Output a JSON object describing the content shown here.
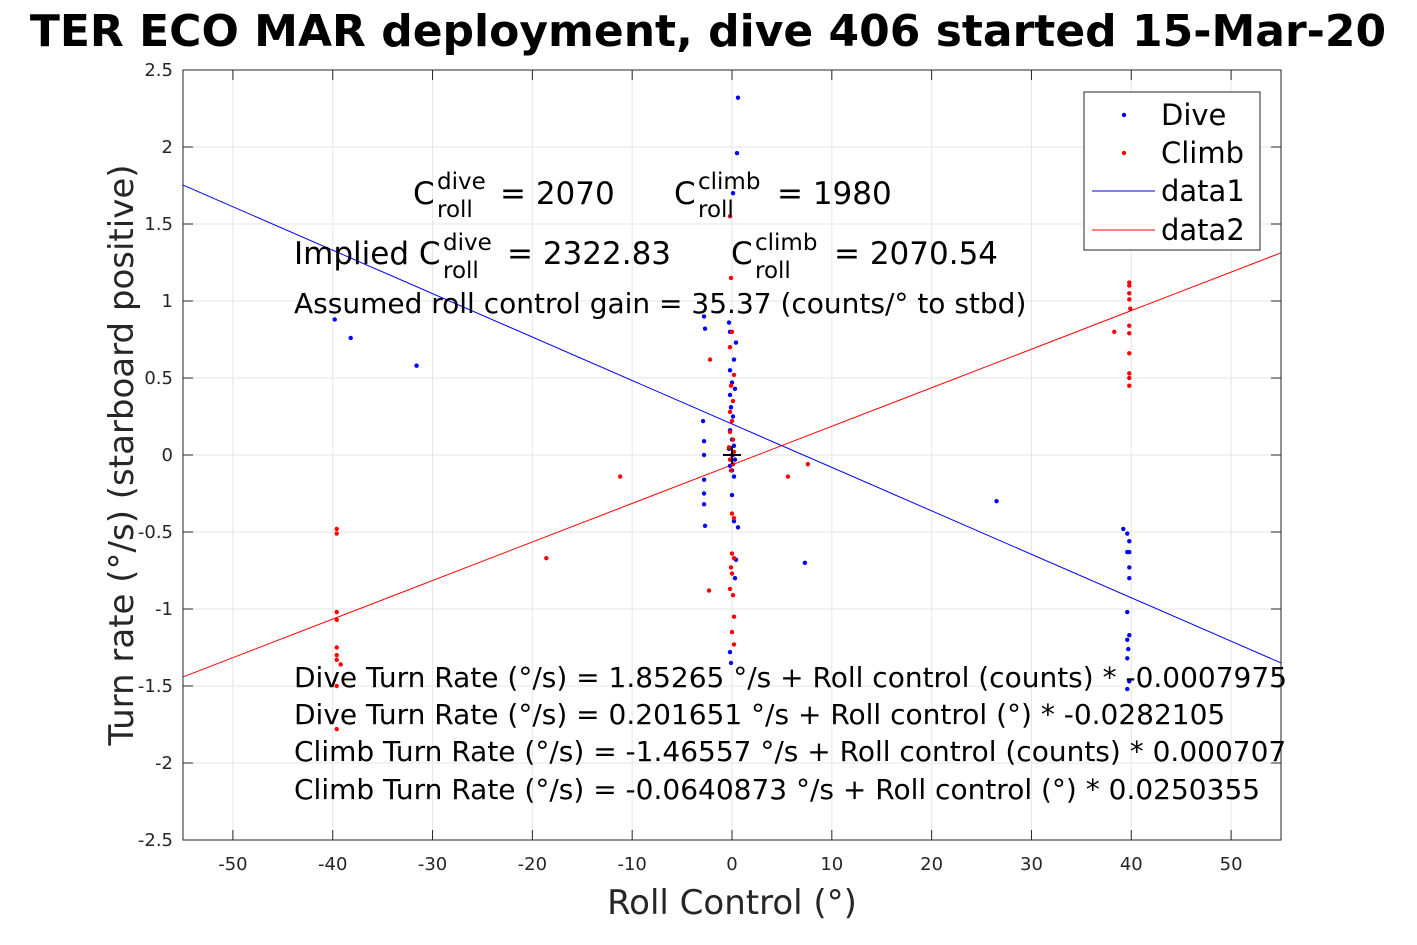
{
  "chart_data": {
    "type": "scatter",
    "title": "TER ECO MAR deployment, dive 406 started 15-Mar-20",
    "xlabel": "Roll Control (°)",
    "ylabel": "Turn rate (°/s) (starboard positive)",
    "xlim": [
      -55,
      55
    ],
    "ylim": [
      -2.5,
      2.5
    ],
    "xticks": [
      -50,
      -40,
      -30,
      -20,
      -10,
      0,
      10,
      20,
      30,
      40,
      50
    ],
    "yticks": [
      -2.5,
      -2,
      -1.5,
      -1,
      -0.5,
      0,
      0.5,
      1,
      1.5,
      2,
      2.5
    ],
    "grid": true,
    "legend_position": "top-right",
    "colors": {
      "dive": "#0000ff",
      "climb": "#ff0000",
      "marker": "#000000"
    },
    "series": [
      {
        "name": "Dive",
        "kind": "points",
        "color": "#0000ff",
        "points": [
          [
            -39.8,
            0.88
          ],
          [
            -38.2,
            0.76
          ],
          [
            -31.6,
            0.58
          ],
          [
            -2.8,
            0.9
          ],
          [
            -2.7,
            0.82
          ],
          [
            -2.9,
            0.22
          ],
          [
            -2.8,
            0.09
          ],
          [
            -2.8,
            0.0
          ],
          [
            -2.8,
            -0.16
          ],
          [
            -2.8,
            -0.25
          ],
          [
            -2.8,
            -0.32
          ],
          [
            -2.7,
            -0.46
          ],
          [
            0.6,
            2.32
          ],
          [
            0.5,
            1.96
          ],
          [
            0.1,
            1.7
          ],
          [
            -0.3,
            0.86
          ],
          [
            -0.2,
            0.8
          ],
          [
            0.4,
            0.73
          ],
          [
            0.2,
            0.62
          ],
          [
            -0.2,
            0.55
          ],
          [
            0.0,
            0.47
          ],
          [
            0.3,
            0.43
          ],
          [
            -0.2,
            0.39
          ],
          [
            -0.1,
            0.31
          ],
          [
            0.1,
            0.25
          ],
          [
            -0.2,
            0.16
          ],
          [
            0.0,
            0.1
          ],
          [
            0.2,
            0.06
          ],
          [
            -0.3,
            0.04
          ],
          [
            0.1,
            0.0
          ],
          [
            0.3,
            -0.03
          ],
          [
            -0.2,
            -0.07
          ],
          [
            0.0,
            -0.1
          ],
          [
            0.2,
            -0.14
          ],
          [
            0.0,
            -0.26
          ],
          [
            0.2,
            -0.43
          ],
          [
            0.6,
            -0.47
          ],
          [
            0.4,
            -0.68
          ],
          [
            0.3,
            -0.8
          ],
          [
            -0.2,
            -1.28
          ],
          [
            -0.1,
            -1.35
          ],
          [
            7.3,
            -0.7
          ],
          [
            26.5,
            -0.3
          ],
          [
            39.2,
            -0.48
          ],
          [
            39.6,
            -0.51
          ],
          [
            39.8,
            -0.56
          ],
          [
            39.8,
            -0.63
          ],
          [
            39.6,
            -0.63
          ],
          [
            39.8,
            -0.73
          ],
          [
            39.8,
            -0.8
          ],
          [
            39.6,
            -1.02
          ],
          [
            39.8,
            -1.17
          ],
          [
            39.6,
            -1.2
          ],
          [
            39.7,
            -1.26
          ],
          [
            39.6,
            -1.32
          ],
          [
            39.8,
            -1.47
          ],
          [
            39.6,
            -1.52
          ]
        ]
      },
      {
        "name": "Climb",
        "kind": "points",
        "color": "#ff0000",
        "points": [
          [
            -39.6,
            -0.48
          ],
          [
            -39.6,
            -0.51
          ],
          [
            -39.6,
            -1.02
          ],
          [
            -39.6,
            -1.07
          ],
          [
            -39.6,
            -1.25
          ],
          [
            -39.6,
            -1.3
          ],
          [
            -39.6,
            -1.33
          ],
          [
            -39.2,
            -1.36
          ],
          [
            -39.6,
            -1.5
          ],
          [
            -39.6,
            -1.78
          ],
          [
            -18.6,
            -0.67
          ],
          [
            -11.2,
            -0.14
          ],
          [
            -2.2,
            0.62
          ],
          [
            -2.3,
            -0.88
          ],
          [
            -0.2,
            1.55
          ],
          [
            -0.1,
            1.15
          ],
          [
            0.0,
            0.8
          ],
          [
            -0.2,
            0.7
          ],
          [
            0.2,
            0.52
          ],
          [
            -0.1,
            0.45
          ],
          [
            0.1,
            0.35
          ],
          [
            -0.2,
            0.28
          ],
          [
            0.0,
            0.22
          ],
          [
            -0.2,
            0.15
          ],
          [
            0.1,
            0.1
          ],
          [
            -0.3,
            0.05
          ],
          [
            0.2,
            0.02
          ],
          [
            0.0,
            0.0
          ],
          [
            -0.2,
            -0.03
          ],
          [
            0.1,
            -0.06
          ],
          [
            -0.1,
            -0.1
          ],
          [
            0.0,
            -0.38
          ],
          [
            0.2,
            -0.41
          ],
          [
            0.0,
            -0.64
          ],
          [
            0.2,
            -0.67
          ],
          [
            -0.1,
            -0.73
          ],
          [
            0.0,
            -0.77
          ],
          [
            -0.2,
            -0.87
          ],
          [
            0.1,
            -0.91
          ],
          [
            0.2,
            -1.05
          ],
          [
            0.0,
            -1.15
          ],
          [
            0.2,
            -1.23
          ],
          [
            5.6,
            -0.14
          ],
          [
            7.6,
            -0.06
          ],
          [
            38.3,
            0.8
          ],
          [
            39.8,
            1.12
          ],
          [
            39.8,
            1.1
          ],
          [
            39.8,
            1.05
          ],
          [
            39.8,
            1.01
          ],
          [
            39.9,
            0.95
          ],
          [
            39.8,
            0.84
          ],
          [
            39.8,
            0.79
          ],
          [
            39.8,
            0.66
          ],
          [
            39.8,
            0.53
          ],
          [
            39.8,
            0.5
          ],
          [
            39.8,
            0.45
          ]
        ]
      },
      {
        "name": "data1",
        "kind": "line",
        "color": "#0000ff",
        "x": [
          -55,
          55
        ],
        "y": [
          1.753,
          -1.35
        ]
      },
      {
        "name": "data2",
        "kind": "line",
        "color": "#ff0000",
        "x": [
          -55,
          55
        ],
        "y": [
          -1.441,
          1.313
        ]
      }
    ],
    "origin_marker": [
      0,
      0
    ],
    "annotations": {
      "c_dive_prefix": "C",
      "c_dive_sup": "dive",
      "c_dive_sub": "roll",
      "c_dive_value": "= 2070",
      "c_climb_prefix": "C",
      "c_climb_sup": "climb",
      "c_climb_sub": "roll",
      "c_climb_value": "= 1980",
      "implied_label": "Implied C",
      "implied_dive_sup": "dive",
      "implied_dive_sub": "roll",
      "implied_dive_value": "= 2322.83",
      "implied_climb_prefix": "C",
      "implied_climb_sup": "climb",
      "implied_climb_sub": "roll",
      "implied_climb_value": "= 2070.54",
      "gain": "Assumed roll control gain = 35.37 (counts/° to stbd)",
      "eq1": "Dive Turn Rate (°/s) = 1.85265 °/s + Roll control (counts) * -0.0007975",
      "eq2": "Dive Turn Rate (°/s) = 0.201651 °/s + Roll control (°) * -0.0282105",
      "eq3": "Climb Turn Rate (°/s) = -1.46557 °/s + Roll control (counts) * 0.000707",
      "eq4": "Climb Turn Rate (°/s) = -0.0640873 °/s + Roll control (°) * 0.0250355"
    }
  }
}
